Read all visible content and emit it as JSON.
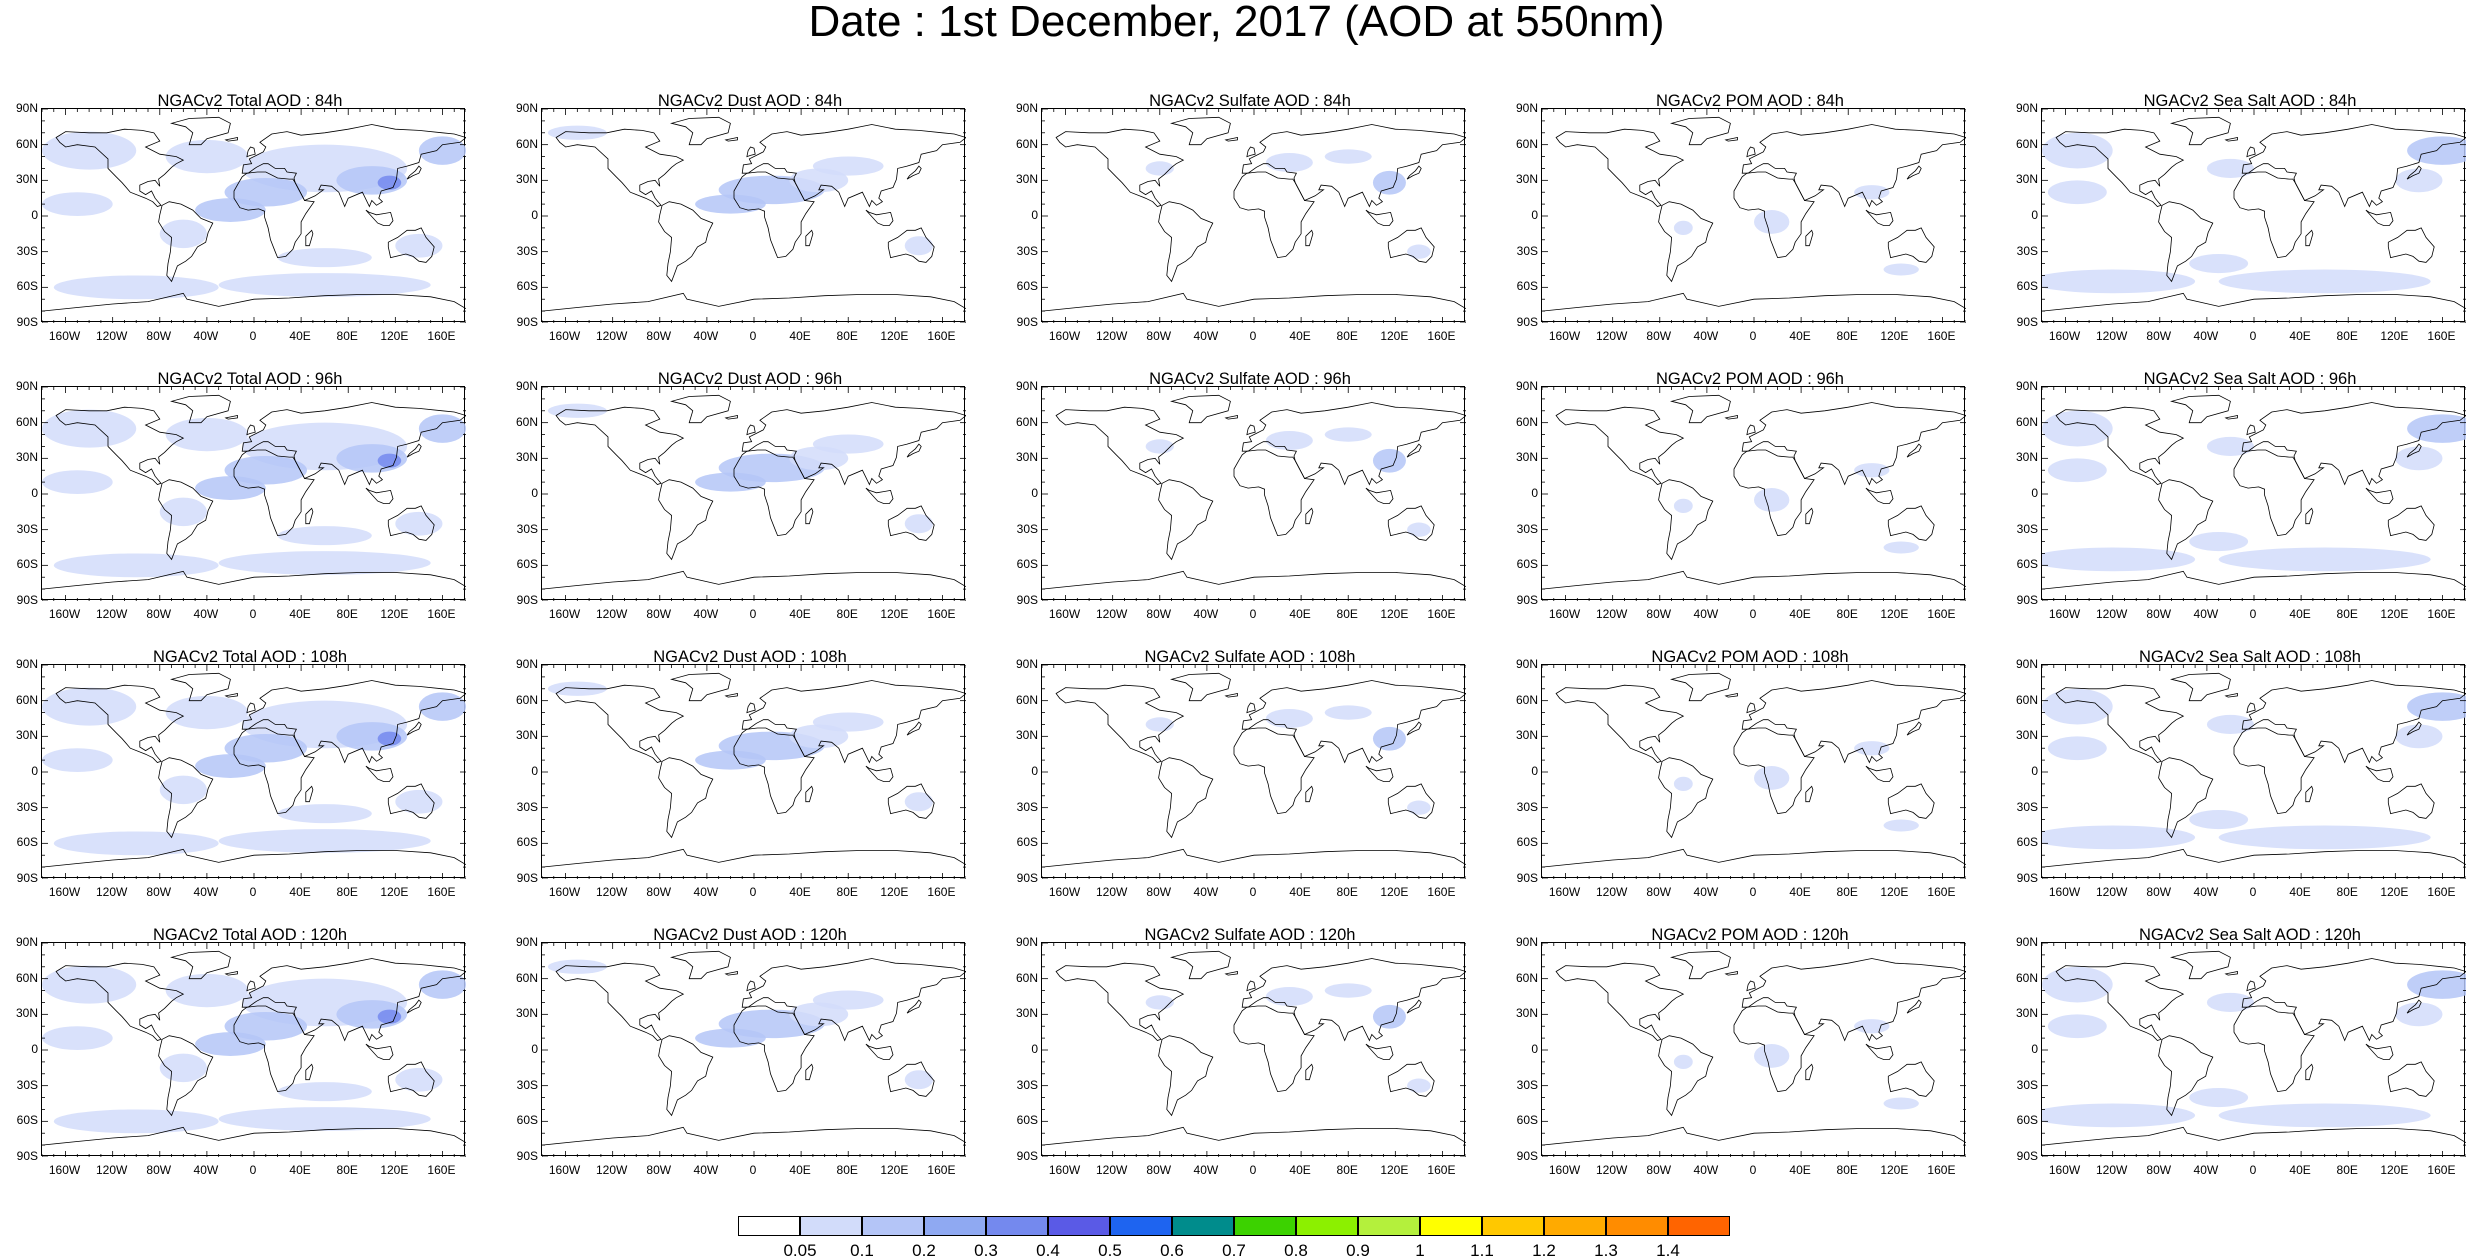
{
  "title": "Date : 1st December, 2017 (AOD at 550nm)",
  "lat_labels": [
    "90N",
    "60N",
    "30N",
    "0",
    "30S",
    "60S",
    "90S"
  ],
  "lon_labels": [
    "160W",
    "120W",
    "80W",
    "40W",
    "0",
    "40E",
    "80E",
    "120E",
    "160E"
  ],
  "panels": [
    {
      "title": "NGACv2 Total AOD : 84h",
      "field": "total"
    },
    {
      "title": "NGACv2 Dust AOD : 84h",
      "field": "dust"
    },
    {
      "title": "NGACv2 Sulfate AOD : 84h",
      "field": "sulfate"
    },
    {
      "title": "NGACv2 POM AOD : 84h",
      "field": "pom"
    },
    {
      "title": "NGACv2 Sea Salt AOD : 84h",
      "field": "seasalt"
    },
    {
      "title": "NGACv2 Total AOD : 96h",
      "field": "total"
    },
    {
      "title": "NGACv2 Dust AOD : 96h",
      "field": "dust"
    },
    {
      "title": "NGACv2 Sulfate AOD : 96h",
      "field": "sulfate"
    },
    {
      "title": "NGACv2 POM AOD : 96h",
      "field": "pom"
    },
    {
      "title": "NGACv2 Sea Salt AOD : 96h",
      "field": "seasalt"
    },
    {
      "title": "NGACv2 Total AOD : 108h",
      "field": "total"
    },
    {
      "title": "NGACv2 Dust AOD : 108h",
      "field": "dust"
    },
    {
      "title": "NGACv2 Sulfate AOD : 108h",
      "field": "sulfate"
    },
    {
      "title": "NGACv2 POM AOD : 108h",
      "field": "pom"
    },
    {
      "title": "NGACv2 Sea Salt AOD : 108h",
      "field": "seasalt"
    },
    {
      "title": "NGACv2 Total AOD : 120h",
      "field": "total"
    },
    {
      "title": "NGACv2 Dust AOD : 120h",
      "field": "dust"
    },
    {
      "title": "NGACv2 Sulfate AOD : 120h",
      "field": "sulfate"
    },
    {
      "title": "NGACv2 POM AOD : 120h",
      "field": "pom"
    },
    {
      "title": "NGACv2 Sea Salt  AOD : 120h",
      "field": "seasalt"
    }
  ],
  "colorbar": {
    "colors": [
      "#ffffff",
      "#d2dcfa",
      "#b4c5f7",
      "#8fa9f2",
      "#7489ee",
      "#5a5ae6",
      "#1e64f0",
      "#008c8c",
      "#3cd200",
      "#8cf000",
      "#b4f03c",
      "#ffff00",
      "#ffc800",
      "#ffaa00",
      "#ff8c00",
      "#ff6400",
      "#ff2814"
    ],
    "labels": [
      "0.05",
      "0.1",
      "0.2",
      "0.3",
      "0.4",
      "0.5",
      "0.6",
      "0.7",
      "0.8",
      "0.9",
      "1",
      "1.1",
      "1.2",
      "1.3",
      "1.4"
    ]
  }
}
